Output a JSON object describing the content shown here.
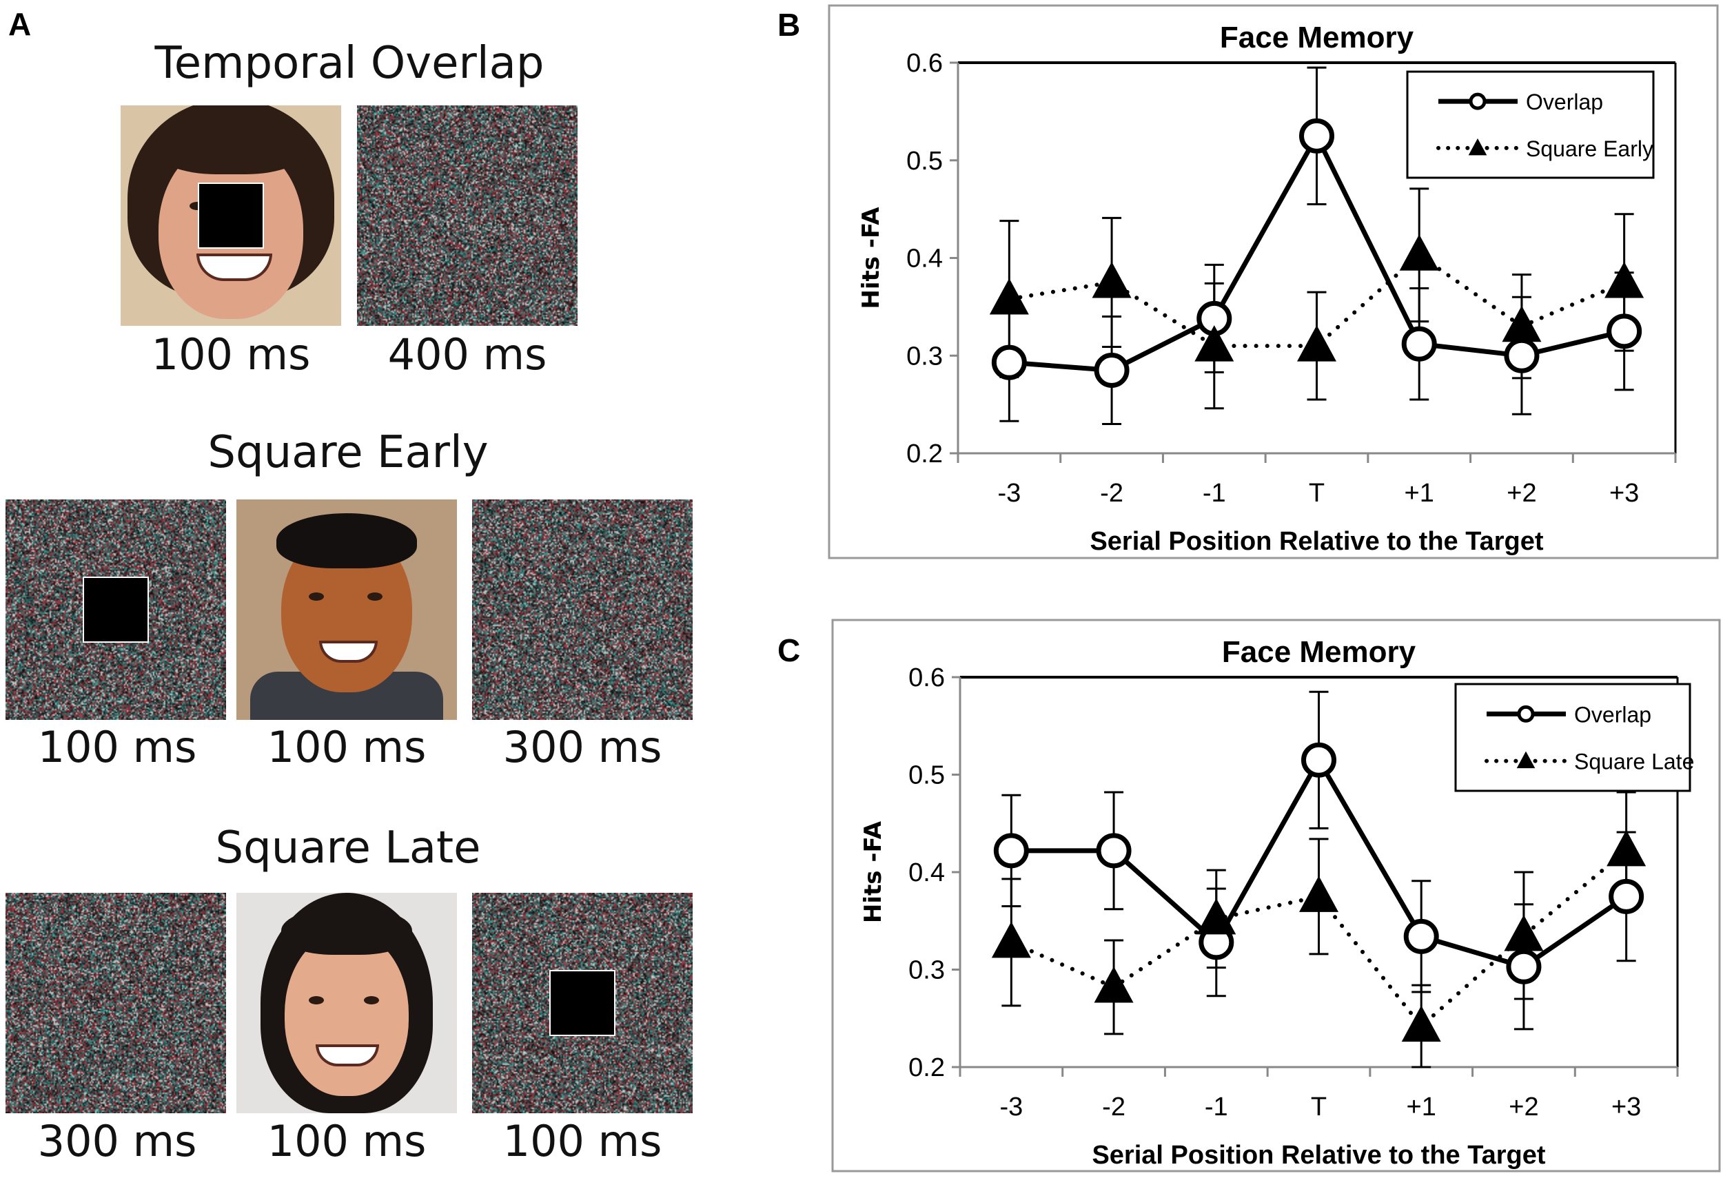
{
  "panel_a": {
    "label": "A",
    "conditions": [
      {
        "title": "Temporal Overlap",
        "frames": [
          {
            "type": "face-with-square",
            "duration": "100 ms"
          },
          {
            "type": "noise",
            "duration": "400 ms"
          }
        ]
      },
      {
        "title": "Square Early",
        "frames": [
          {
            "type": "noise-with-square",
            "duration": "100 ms"
          },
          {
            "type": "face",
            "duration": "100 ms"
          },
          {
            "type": "noise",
            "duration": "300 ms"
          }
        ]
      },
      {
        "title": "Square Late",
        "frames": [
          {
            "type": "noise",
            "duration": "300 ms"
          },
          {
            "type": "face",
            "duration": "100 ms"
          },
          {
            "type": "noise-with-square",
            "duration": "100 ms"
          }
        ]
      }
    ]
  },
  "chart_data": [
    {
      "panel_label": "B",
      "type": "line",
      "title": "Face Memory",
      "xlabel": "Serial Position Relative to the Target",
      "ylabel": "Hits -FA",
      "categories": [
        "-3",
        "-2",
        "-1",
        "T",
        "+1",
        "+2",
        "+3"
      ],
      "ylim": [
        0.2,
        0.6
      ],
      "yticks": [
        "0.2",
        "0.3",
        "0.4",
        "0.5",
        "0.6"
      ],
      "legend_position": "top-right",
      "series": [
        {
          "name": "Overlap",
          "style": "solid-open-circle",
          "values": [
            0.293,
            0.285,
            0.338,
            0.525,
            0.312,
            0.3,
            0.325
          ],
          "errors": [
            0.06,
            0.055,
            0.055,
            0.07,
            0.057,
            0.06,
            0.06
          ]
        },
        {
          "name": "Square Early",
          "style": "dotted-filled-triangle",
          "values": [
            0.358,
            0.375,
            0.31,
            0.31,
            0.403,
            0.33,
            0.375
          ],
          "errors": [
            0.08,
            0.066,
            0.064,
            0.055,
            0.068,
            0.053,
            0.07
          ]
        }
      ]
    },
    {
      "panel_label": "C",
      "type": "line",
      "title": "Face Memory",
      "xlabel": "Serial Position Relative to the Target",
      "ylabel": "Hits -FA",
      "categories": [
        "-3",
        "-2",
        "-1",
        "T",
        "+1",
        "+2",
        "+3"
      ],
      "ylim": [
        0.2,
        0.6
      ],
      "yticks": [
        "0.2",
        "0.3",
        "0.4",
        "0.5",
        "0.6"
      ],
      "legend_position": "top-right",
      "series": [
        {
          "name": "Overlap",
          "style": "solid-open-circle",
          "values": [
            0.422,
            0.422,
            0.328,
            0.515,
            0.334,
            0.303,
            0.375
          ],
          "errors": [
            0.057,
            0.06,
            0.055,
            0.07,
            0.057,
            0.064,
            0.066
          ]
        },
        {
          "name": "Square Late",
          "style": "dotted-filled-triangle",
          "values": [
            0.328,
            0.282,
            0.352,
            0.375,
            0.242,
            0.335,
            0.422
          ],
          "errors": [
            0.065,
            0.048,
            0.05,
            0.059,
            0.042,
            0.065,
            0.06
          ]
        }
      ]
    }
  ]
}
